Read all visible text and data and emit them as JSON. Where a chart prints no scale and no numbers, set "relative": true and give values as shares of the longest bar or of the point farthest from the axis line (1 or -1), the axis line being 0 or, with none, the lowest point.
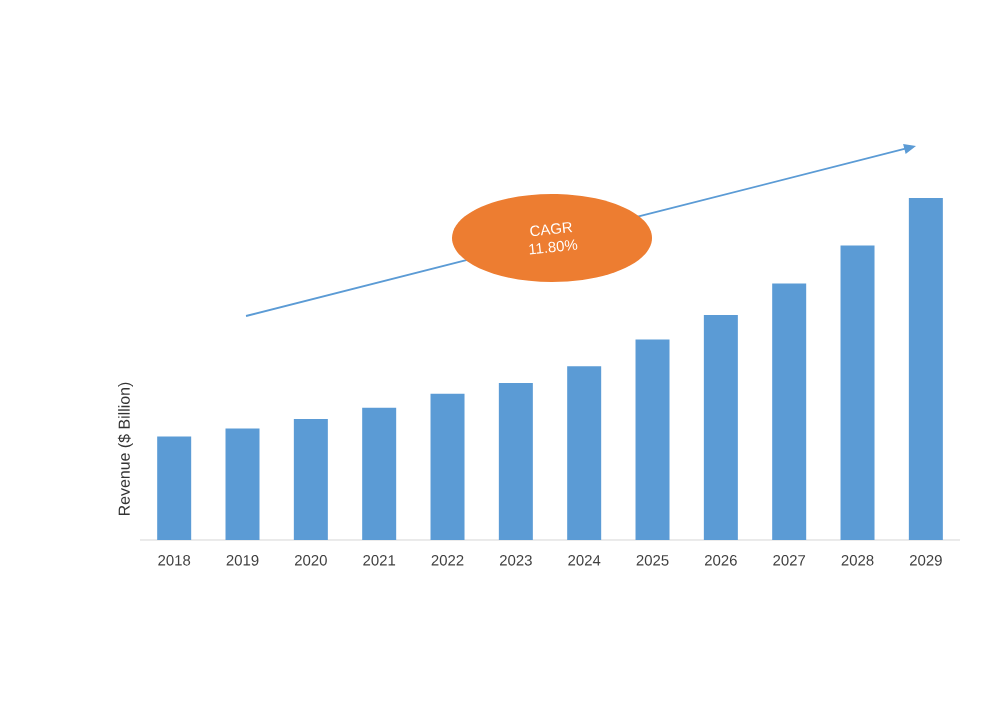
{
  "chart_data": {
    "type": "bar",
    "ylabel": "Revenue ($ Billion)",
    "relative": true,
    "color": "#5b9bd5",
    "categories": [
      "2018",
      "2019",
      "2020",
      "2021",
      "2022",
      "2023",
      "2024",
      "2025",
      "2026",
      "2027",
      "2028",
      "2029"
    ],
    "values": [
      0.303,
      0.326,
      0.354,
      0.387,
      0.428,
      0.459,
      0.508,
      0.586,
      0.658,
      0.75,
      0.861,
      1.0
    ],
    "annotations": [
      "CAGR",
      "11.80%"
    ]
  }
}
